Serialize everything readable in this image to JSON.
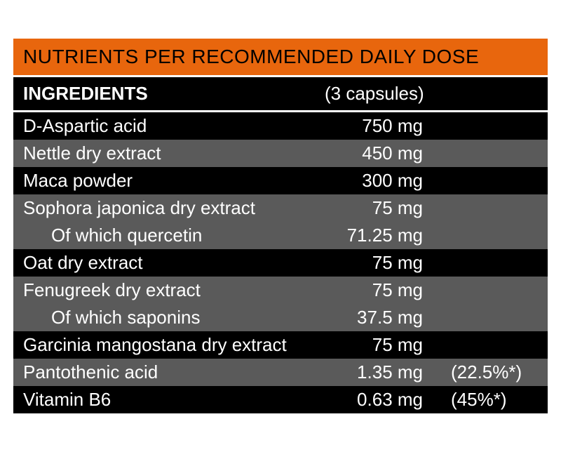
{
  "title": "NUTRIENTS PER RECOMMENDED DAILY DOSE",
  "colHeader1": "INGREDIENTS",
  "colHeader2": "(3 capsules)",
  "headerBg": "#e8660d",
  "headerColor": "#000000",
  "rowAltBg": "#5a5a5a",
  "rowBg": "#000000",
  "rows": [
    {
      "name": "D-Aspartic acid",
      "amount": "750 mg",
      "pct": "",
      "indent": false,
      "alt": false
    },
    {
      "name": "Nettle dry extract",
      "amount": "450 mg",
      "pct": "",
      "indent": false,
      "alt": true
    },
    {
      "name": "Maca powder",
      "amount": "300 mg",
      "pct": "",
      "indent": false,
      "alt": false
    },
    {
      "name": "Sophora japonica dry extract",
      "amount": "75 mg",
      "pct": "",
      "indent": false,
      "alt": true
    },
    {
      "name": "Of which quercetin",
      "amount": "71.25 mg",
      "pct": "",
      "indent": true,
      "alt": true
    },
    {
      "name": "Oat dry extract",
      "amount": "75 mg",
      "pct": "",
      "indent": false,
      "alt": false
    },
    {
      "name": "Fenugreek dry extract",
      "amount": "75 mg",
      "pct": "",
      "indent": false,
      "alt": true
    },
    {
      "name": "Of which saponins",
      "amount": "37.5 mg",
      "pct": "",
      "indent": true,
      "alt": true
    },
    {
      "name": "Garcinia mangostana dry extract",
      "amount": "75 mg",
      "pct": "",
      "indent": false,
      "alt": false
    },
    {
      "name": "Pantothenic acid",
      "amount": "1.35 mg",
      "pct": "(22.5%*)",
      "indent": false,
      "alt": true
    },
    {
      "name": "Vitamin B6",
      "amount": "0.63 mg",
      "pct": "(45%*)",
      "indent": false,
      "alt": false
    }
  ]
}
